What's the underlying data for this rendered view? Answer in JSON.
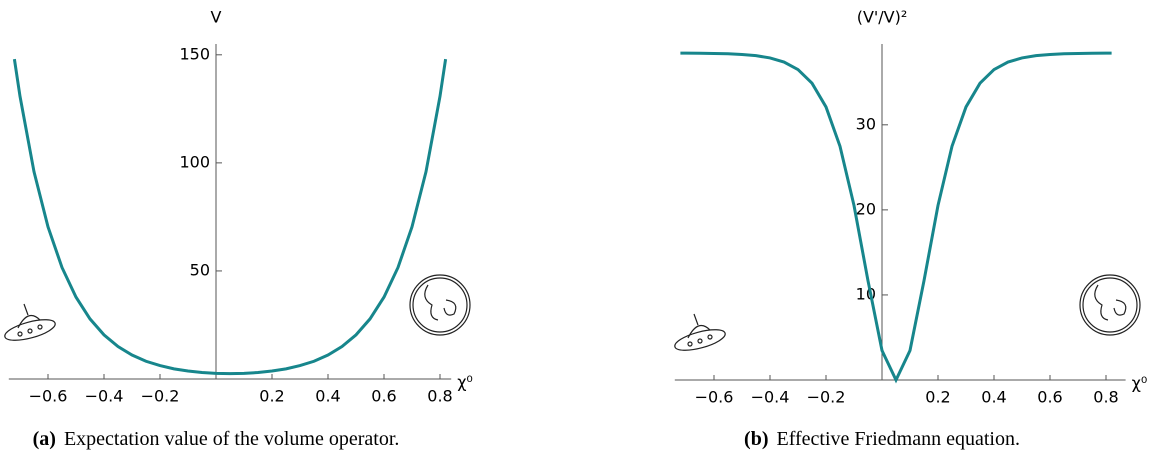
{
  "chart_data": [
    {
      "type": "line",
      "y_label": "V",
      "x_label": "χ⁰",
      "caption_label": "(a)",
      "caption": "Expectation value of the volume operator.",
      "xlim": [
        -0.74,
        0.84
      ],
      "ylim": [
        0,
        155
      ],
      "xticks": [
        {
          "value": -0.6,
          "label": "−0.6"
        },
        {
          "value": -0.4,
          "label": "−0.4"
        },
        {
          "value": -0.2,
          "label": "−0.2"
        },
        0.2,
        0.4,
        0.6,
        0.8
      ],
      "yticks": [
        50,
        100,
        150
      ],
      "x": [
        -0.72,
        -0.7,
        -0.65,
        -0.6,
        -0.55,
        -0.5,
        -0.45,
        -0.4,
        -0.35,
        -0.3,
        -0.25,
        -0.2,
        -0.15,
        -0.1,
        -0.05,
        0,
        0.05,
        0.1,
        0.15,
        0.2,
        0.25,
        0.3,
        0.35,
        0.4,
        0.45,
        0.5,
        0.55,
        0.6,
        0.65,
        0.7,
        0.75,
        0.8,
        0.82
      ],
      "series": [
        {
          "color": "#17868c",
          "values": [
            148,
            130.8,
            95.9,
            70.4,
            51.6,
            37.9,
            27.8,
            20.4,
            15.0,
            11.1,
            8.2,
            6.2,
            4.7,
            3.7,
            3.0,
            2.6,
            2.5,
            2.6,
            3.0,
            3.7,
            4.7,
            6.2,
            8.2,
            11.1,
            15.0,
            20.4,
            27.8,
            37.9,
            51.6,
            70.4,
            95.9,
            130.8,
            148
          ]
        }
      ]
    },
    {
      "type": "line",
      "y_label": "(V'/V)²",
      "x_label": "χ⁰",
      "caption_label": "(b)",
      "caption": "Effective Friedmann equation.",
      "xlim": [
        -0.74,
        0.87
      ],
      "ylim": [
        0,
        39.5
      ],
      "xticks": [
        {
          "value": -0.6,
          "label": "−0.6"
        },
        {
          "value": -0.4,
          "label": "−0.4"
        },
        {
          "value": -0.2,
          "label": "−0.2"
        },
        0.2,
        0.4,
        0.6,
        0.8
      ],
      "yticks": [
        10,
        20,
        30
      ],
      "x": [
        -0.72,
        -0.7,
        -0.65,
        -0.6,
        -0.55,
        -0.5,
        -0.45,
        -0.4,
        -0.35,
        -0.3,
        -0.25,
        -0.2,
        -0.15,
        -0.1,
        -0.05,
        0,
        0.05,
        0.1,
        0.15,
        0.2,
        0.25,
        0.3,
        0.35,
        0.4,
        0.45,
        0.5,
        0.55,
        0.6,
        0.65,
        0.7,
        0.75,
        0.8,
        0.82
      ],
      "series": [
        {
          "color": "#17868c",
          "values": [
            38.43,
            38.43,
            38.42,
            38.39,
            38.35,
            38.27,
            38.13,
            37.86,
            37.38,
            36.49,
            34.89,
            32.1,
            27.48,
            20.52,
            11.67,
            3.47,
            0,
            3.47,
            11.67,
            20.52,
            27.48,
            32.1,
            34.89,
            36.49,
            37.38,
            37.86,
            38.13,
            38.27,
            38.35,
            38.39,
            38.42,
            38.43,
            38.43
          ]
        }
      ]
    }
  ]
}
